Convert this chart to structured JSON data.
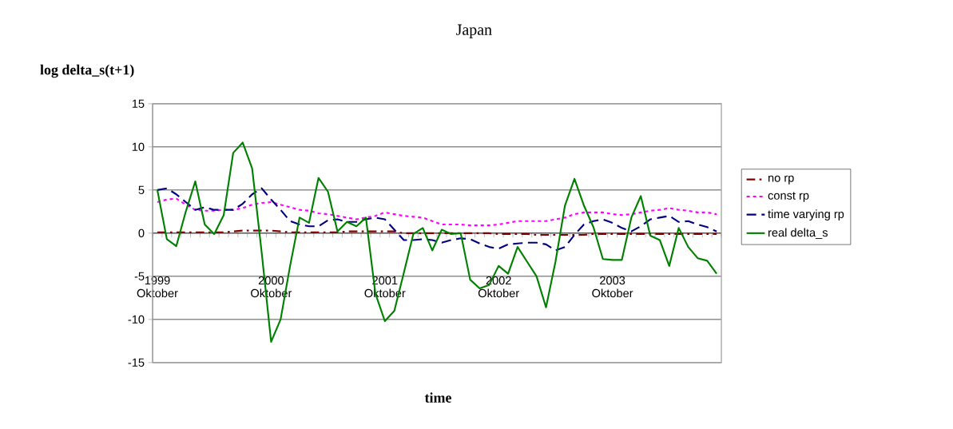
{
  "chart_data": {
    "type": "line",
    "title": "Japan",
    "xlabel": "time",
    "ylabel": "log delta_s(t+1)",
    "categories": [
      "1999 Oktober",
      null,
      null,
      null,
      null,
      null,
      null,
      null,
      null,
      null,
      null,
      null,
      "2000 Oktober",
      null,
      null,
      null,
      null,
      null,
      null,
      null,
      null,
      null,
      null,
      null,
      "2001 Oktober",
      null,
      null,
      null,
      null,
      null,
      null,
      null,
      null,
      null,
      null,
      null,
      "2002 Oktober",
      null,
      null,
      null,
      null,
      null,
      null,
      null,
      null,
      null,
      null,
      null,
      "2003 Oktober",
      null,
      null,
      null,
      null,
      null,
      null,
      null,
      null,
      null,
      null,
      null
    ],
    "series": [
      {
        "name": "no rp",
        "color": "#800000",
        "line_style": "dashdot",
        "values": [
          0.1,
          0.1,
          0.1,
          0.1,
          0.1,
          0.1,
          0.1,
          0.1,
          0.2,
          0.3,
          0.3,
          0.3,
          0.3,
          0.2,
          0.1,
          0.1,
          0.1,
          0.1,
          0.1,
          0.1,
          0.2,
          0.2,
          0.2,
          0.2,
          0.2,
          0.2,
          0.0,
          0.0,
          0.0,
          0.0,
          0.0,
          0.0,
          0.0,
          0.0,
          0.0,
          0.0,
          -0.1,
          -0.1,
          -0.1,
          -0.1,
          -0.2,
          -0.2,
          -0.2,
          -0.2,
          -0.2,
          -0.2,
          -0.1,
          -0.1,
          -0.1,
          -0.1,
          -0.1,
          -0.1,
          -0.1,
          -0.1,
          -0.1,
          -0.1,
          -0.1,
          -0.1,
          -0.1,
          -0.1
        ]
      },
      {
        "name": "const rp",
        "color": "#ff00ff",
        "line_style": "dotted",
        "values": [
          3.6,
          3.9,
          4.0,
          3.3,
          2.7,
          2.6,
          2.6,
          2.7,
          2.7,
          2.9,
          3.3,
          3.5,
          3.6,
          3.3,
          3.0,
          2.7,
          2.6,
          2.3,
          2.2,
          2.0,
          1.8,
          1.6,
          1.8,
          2.0,
          2.4,
          2.2,
          2.0,
          1.9,
          1.8,
          1.4,
          1.0,
          1.0,
          1.0,
          0.9,
          0.9,
          0.9,
          1.0,
          1.2,
          1.4,
          1.4,
          1.4,
          1.4,
          1.6,
          1.8,
          2.2,
          2.4,
          2.4,
          2.4,
          2.2,
          2.1,
          2.2,
          2.4,
          2.6,
          2.7,
          2.9,
          2.7,
          2.6,
          2.4,
          2.4,
          2.2
        ]
      },
      {
        "name": "time varying rp",
        "color": "#000080",
        "line_style": "dashed",
        "values": [
          5.0,
          5.2,
          4.5,
          3.6,
          2.7,
          3.0,
          2.7,
          2.7,
          2.7,
          3.4,
          4.5,
          5.2,
          3.9,
          2.7,
          1.4,
          1.0,
          0.8,
          0.8,
          1.5,
          1.6,
          1.3,
          1.3,
          1.6,
          1.8,
          1.6,
          0.4,
          -0.8,
          -0.8,
          -0.7,
          -0.8,
          -1.1,
          -0.8,
          -0.6,
          -0.7,
          -1.2,
          -1.6,
          -1.8,
          -1.3,
          -1.2,
          -1.1,
          -1.1,
          -1.3,
          -2.0,
          -1.6,
          -0.2,
          1.0,
          1.4,
          1.6,
          1.2,
          0.6,
          0.2,
          0.8,
          1.6,
          1.8,
          2.0,
          1.3,
          1.4,
          1.0,
          0.7,
          0.2
        ]
      },
      {
        "name": "real delta_s",
        "color": "#008000",
        "line_style": "solid",
        "values": [
          5.0,
          -0.7,
          -1.5,
          2.5,
          6.0,
          1.0,
          -0.1,
          2.1,
          9.3,
          10.5,
          7.5,
          -2.2,
          -12.6,
          -10.0,
          -3.8,
          1.8,
          1.2,
          6.4,
          4.8,
          0.2,
          1.3,
          0.8,
          1.8,
          -7.0,
          -10.2,
          -9.0,
          -4.6,
          -0.1,
          0.6,
          -2.0,
          0.4,
          -0.1,
          0.0,
          -5.4,
          -6.4,
          -6.0,
          -3.8,
          -4.7,
          -1.6,
          -3.3,
          -5.0,
          -8.6,
          -3.3,
          3.2,
          6.3,
          3.2,
          0.7,
          -3.0,
          -3.1,
          -3.1,
          1.8,
          4.3,
          -0.3,
          -0.8,
          -3.8,
          0.6,
          -1.6,
          -2.9,
          -3.2,
          -4.7
        ]
      }
    ],
    "ylim": [
      -15,
      15
    ],
    "yticks": [
      -15,
      -10,
      -5,
      0,
      5,
      10,
      15
    ],
    "grid": "y",
    "legend": "right",
    "marker": "none"
  }
}
